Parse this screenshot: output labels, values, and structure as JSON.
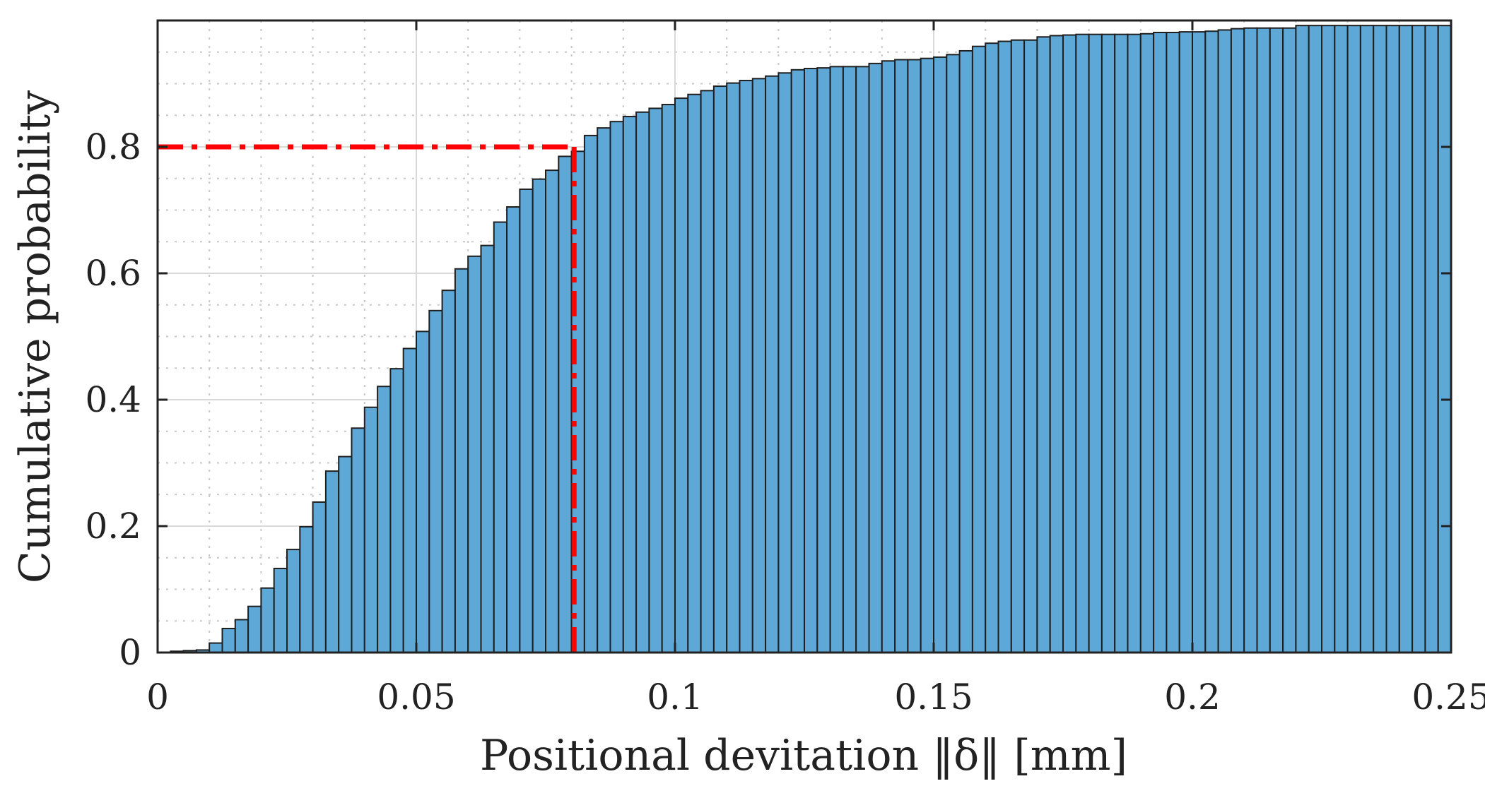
{
  "chart_data": {
    "type": "bar",
    "title": "",
    "xlabel": "Positional devitation ‖δ‖ [mm]",
    "ylabel": "Cumulative probability",
    "xlim": [
      0,
      0.25
    ],
    "ylim": [
      0,
      1.0
    ],
    "x_ticks": [
      0,
      0.05,
      0.1,
      0.15,
      0.2,
      0.25
    ],
    "x_tick_labels": [
      "0",
      "0.05",
      "0.1",
      "0.15",
      "0.2",
      "0.25"
    ],
    "y_ticks": [
      0,
      0.2,
      0.4,
      0.6,
      0.8
    ],
    "y_tick_labels": [
      "0",
      "0.2",
      "0.4",
      "0.6",
      "0.8"
    ],
    "grid": true,
    "minor_grid": true,
    "bin_width": 0.0025,
    "bin_start": 0.0025,
    "values": [
      0.002,
      0.003,
      0.004,
      0.015,
      0.038,
      0.052,
      0.073,
      0.102,
      0.133,
      0.163,
      0.199,
      0.238,
      0.287,
      0.31,
      0.355,
      0.388,
      0.421,
      0.449,
      0.481,
      0.508,
      0.541,
      0.573,
      0.607,
      0.627,
      0.644,
      0.681,
      0.705,
      0.733,
      0.749,
      0.763,
      0.785,
      0.793,
      0.818,
      0.83,
      0.84,
      0.848,
      0.855,
      0.861,
      0.867,
      0.877,
      0.883,
      0.889,
      0.896,
      0.901,
      0.905,
      0.908,
      0.912,
      0.917,
      0.922,
      0.924,
      0.925,
      0.927,
      0.927,
      0.927,
      0.932,
      0.936,
      0.938,
      0.938,
      0.94,
      0.942,
      0.946,
      0.952,
      0.959,
      0.964,
      0.967,
      0.969,
      0.969,
      0.974,
      0.976,
      0.977,
      0.978,
      0.978,
      0.978,
      0.978,
      0.978,
      0.979,
      0.981,
      0.981,
      0.982,
      0.982,
      0.983,
      0.985,
      0.987,
      0.988,
      0.988,
      0.988,
      0.988,
      0.992,
      0.992,
      0.992,
      0.992,
      0.992,
      0.992,
      0.992,
      0.992,
      0.992,
      0.992,
      0.992,
      0.992,
      0.992
    ],
    "reference": {
      "probability": 0.8,
      "deviation_mm": 0.0805,
      "color": "#ff0000",
      "style": "dash-dot"
    },
    "bar_color": "#5ea8d8",
    "edge_color": "#1f1f1f"
  }
}
